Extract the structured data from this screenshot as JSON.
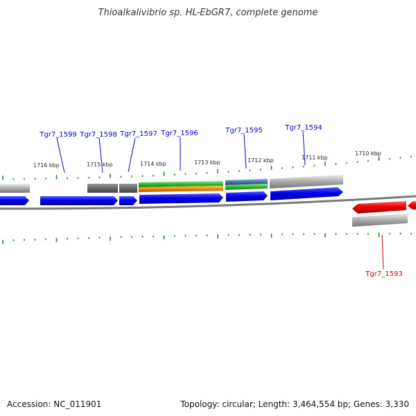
{
  "title": "Thioalkalivibrio sp. HL-EbGR7, complete genome",
  "footer": {
    "accession": "Accession: NC_011901",
    "topology": "Topology: circular; Length: 3,464,554 bp; Genes: 3,330"
  },
  "kbp_labels": [
    "1716 kbp",
    "1715 kbp",
    "1714 kbp",
    "1713 kbp",
    "1712 kbp",
    "1711 kbp",
    "1710 kbp"
  ],
  "gene_labels": [
    {
      "name": "Tgr7_1599",
      "color": "#0000cc"
    },
    {
      "name": "Tgr7_1598",
      "color": "#0000cc"
    },
    {
      "name": "Tgr7_1597",
      "color": "#0000cc"
    },
    {
      "name": "Tgr7_1596",
      "color": "#0000cc"
    },
    {
      "name": "Tgr7_1595",
      "color": "#0000cc"
    },
    {
      "name": "Tgr7_1594",
      "color": "#0000cc"
    },
    {
      "name": "Tgr7_1593",
      "color": "#cc0000"
    }
  ],
  "colors": {
    "forward_gene": "#0000ee",
    "reverse_gene": "#ee0000",
    "tick": "#228822",
    "backbone": "#777777",
    "feature_gray": "#aaaaaa",
    "feature_dark": "#666666",
    "feature_green": "#33bb33",
    "feature_orange": "#ee8800",
    "feature_steel": "#4477aa"
  }
}
